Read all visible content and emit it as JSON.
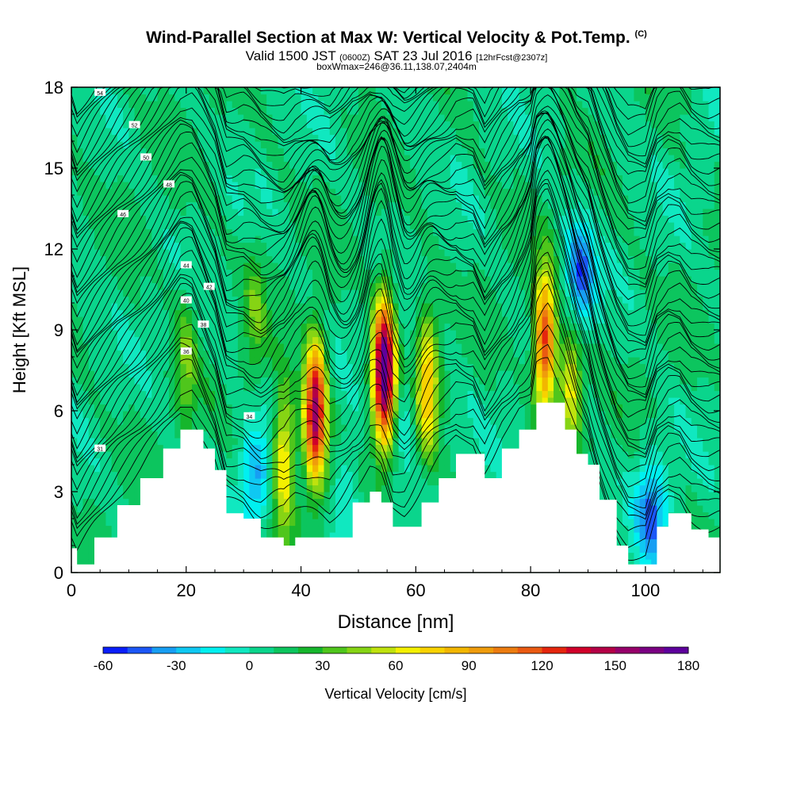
{
  "header": {
    "title": "Wind-Parallel Section at Max W: Vertical Velocity & Pot.Temp.",
    "copyright": "(C)",
    "valid_prefix": "Valid 1500 JST",
    "valid_utc": "(0600Z)",
    "valid_date": "SAT 23 Jul 2016",
    "forecast": "[12hrFcst@2307z]",
    "box_info": "boxWmax=246@36.11,138.07,2404m"
  },
  "colorbar": {
    "label": "Vertical Velocity [cm/s]",
    "ticks": [
      "-60",
      "-30",
      "0",
      "30",
      "60",
      "90",
      "120",
      "150",
      "180"
    ],
    "colors": [
      "#0a1efa",
      "#1c57f6",
      "#179ef3",
      "#0fc8f2",
      "#00f0f0",
      "#10e8c0",
      "#0ad58c",
      "#0cc55e",
      "#16b62c",
      "#4fc61c",
      "#86d414",
      "#bfe20e",
      "#f4f000",
      "#f8d200",
      "#f2b600",
      "#ef9c0c",
      "#ec7c10",
      "#ea5a12",
      "#e5260e",
      "#d0002a",
      "#b40046",
      "#96006a",
      "#7a0082",
      "#5e009c"
    ]
  },
  "chart_data": {
    "type": "heatmap",
    "title": "Wind-Parallel Section at Max W: Vertical Velocity & Pot.Temp.",
    "xlabel": "Distance [nm]",
    "ylabel": "Height [Kft MSL]",
    "xlim": [
      0,
      113
    ],
    "ylim": [
      0,
      18
    ],
    "xticks": [
      0,
      20,
      40,
      60,
      80,
      100
    ],
    "yticks": [
      0,
      3,
      6,
      9,
      12,
      15,
      18
    ],
    "colorbar_label": "Vertical Velocity [cm/s]",
    "colorbar_range": [
      -60,
      180
    ],
    "terrain": [
      [
        0,
        0.9
      ],
      [
        1,
        0.3
      ],
      [
        4,
        1.3
      ],
      [
        8,
        2.5
      ],
      [
        12,
        3.5
      ],
      [
        16,
        4.6
      ],
      [
        19,
        5.3
      ],
      [
        21,
        5.3
      ],
      [
        23,
        4.6
      ],
      [
        25,
        3.8
      ],
      [
        27,
        2.2
      ],
      [
        30,
        2.0
      ],
      [
        33,
        1.3
      ],
      [
        37,
        1.0
      ],
      [
        39,
        1.3
      ],
      [
        45,
        1.3
      ],
      [
        49,
        2.6
      ],
      [
        52,
        3.0
      ],
      [
        54,
        2.6
      ],
      [
        56,
        1.7
      ],
      [
        58,
        1.7
      ],
      [
        61,
        2.6
      ],
      [
        64,
        3.5
      ],
      [
        67,
        4.4
      ],
      [
        70,
        4.4
      ],
      [
        72,
        3.5
      ],
      [
        75,
        4.6
      ],
      [
        78,
        5.3
      ],
      [
        80,
        5.3
      ],
      [
        81,
        6.3
      ],
      [
        83,
        6.3
      ],
      [
        86,
        5.3
      ],
      [
        88,
        4.4
      ],
      [
        90,
        4.0
      ],
      [
        92,
        2.7
      ],
      [
        95,
        1.0
      ],
      [
        97,
        0.3
      ],
      [
        100,
        0.3
      ],
      [
        102,
        1.7
      ],
      [
        104,
        2.2
      ],
      [
        106,
        2.2
      ],
      [
        108,
        1.6
      ],
      [
        111,
        1.3
      ],
      [
        113,
        1.3
      ]
    ],
    "updrafts": [
      {
        "x": 42.5,
        "z": 6.0,
        "w": 150
      },
      {
        "x": 37,
        "z": 4.2,
        "w": 70
      },
      {
        "x": 54.5,
        "z": 7.5,
        "w": 180
      },
      {
        "x": 62,
        "z": 7.0,
        "w": 75
      },
      {
        "x": 82.5,
        "z": 8.5,
        "w": 120
      },
      {
        "x": 87,
        "z": 6.8,
        "w": 60
      },
      {
        "x": 20,
        "z": 8.0,
        "w": 30
      },
      {
        "x": 32,
        "z": 9.5,
        "w": 25
      }
    ],
    "downdrafts": [
      {
        "x": 32,
        "z": 3.5,
        "w": -40
      },
      {
        "x": 58,
        "z": 6.0,
        "w": -20
      },
      {
        "x": 88.5,
        "z": 11.0,
        "w": -55
      },
      {
        "x": 101,
        "z": 2.2,
        "w": -50
      },
      {
        "x": 48,
        "z": 3.0,
        "w": -20
      }
    ],
    "theta_labels": [
      "31",
      "34",
      "36",
      "38",
      "40",
      "42",
      "44",
      "46",
      "48",
      "50",
      "52",
      "54"
    ]
  }
}
